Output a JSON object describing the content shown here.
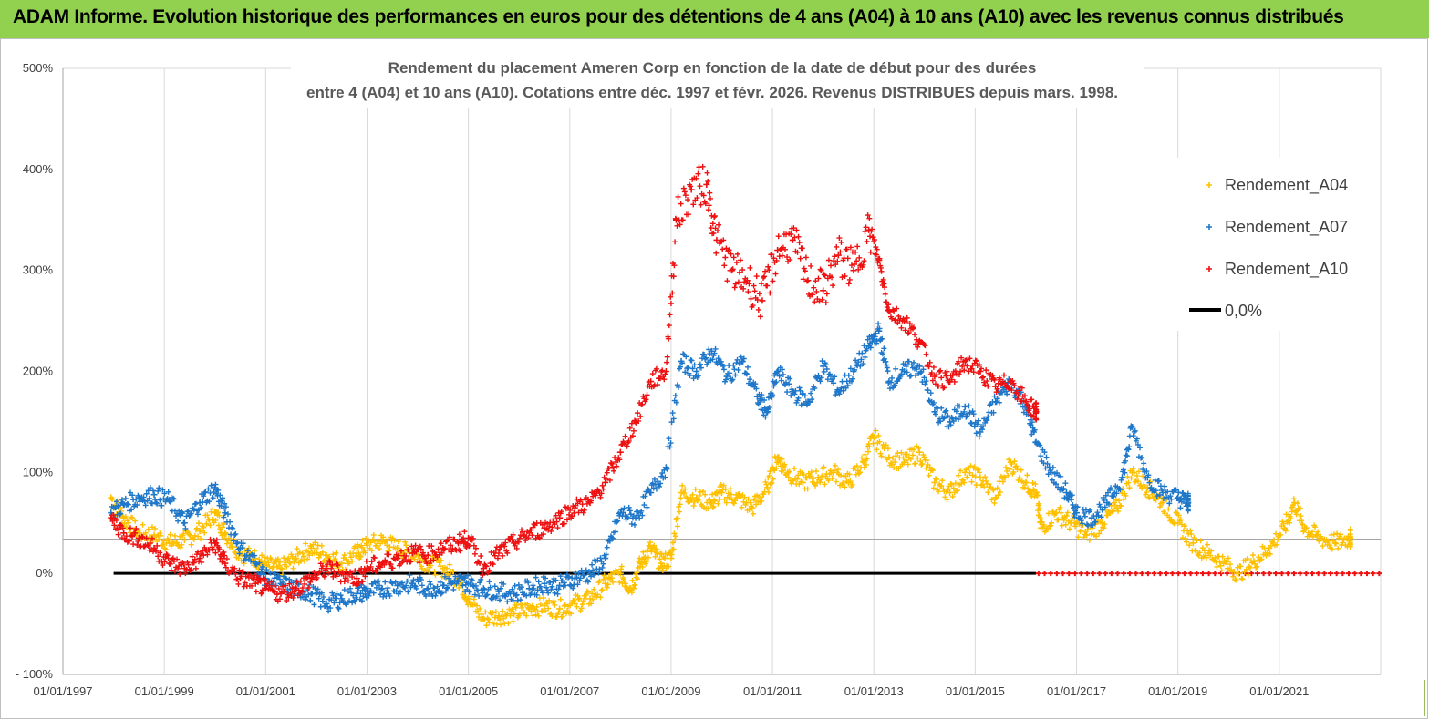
{
  "banner": {
    "title": "ADAM Informe. Evolution historique des performances en euros pour des détentions de 4 ans (A04) à 10 ans (A10) avec les revenus connus distribués",
    "color": "#92d050"
  },
  "chart_data": {
    "type": "scatter",
    "title_line1": "Rendement du placement Ameren Corp en fonction de la date de début pour des durées",
    "title_line2": "entre 4 (A04) et 10 ans (A10). Cotations entre déc. 1997 et févr. 2026. Revenus DISTRIBUES depuis mars. 1998.",
    "x_range": [
      1997.0,
      2023.0
    ],
    "y_range": [
      -100,
      500
    ],
    "x_ticks": [
      1997,
      1999,
      2001,
      2003,
      2005,
      2007,
      2009,
      2011,
      2013,
      2015,
      2017,
      2019,
      2021
    ],
    "x_tick_labels": [
      "01/01/1997",
      "01/01/1999",
      "01/01/2001",
      "01/01/2003",
      "01/01/2005",
      "01/01/2007",
      "01/01/2009",
      "01/01/2011",
      "01/01/2013",
      "01/01/2015",
      "01/01/2017",
      "01/01/2019",
      "01/01/2021"
    ],
    "y_ticks": [
      -100,
      0,
      100,
      200,
      300,
      400,
      500
    ],
    "y_tick_labels": [
      "- 100%",
      "0%",
      "100%",
      "200%",
      "300%",
      "400%",
      "500%"
    ],
    "reference_line_y": 34,
    "zero_line": {
      "name": "0,0%",
      "x_start": 1998.0,
      "x_end": 2023.0,
      "value": 0,
      "color": "#000000"
    },
    "legend_position": "right",
    "series": [
      {
        "name": "Rendement_A04",
        "color": "#ffc000",
        "points": [
          [
            1997.95,
            75
          ],
          [
            1998.2,
            55
          ],
          [
            1998.5,
            40
          ],
          [
            1998.8,
            38
          ],
          [
            1999.1,
            30
          ],
          [
            1999.4,
            33
          ],
          [
            1999.7,
            42
          ],
          [
            2000.0,
            60
          ],
          [
            2000.2,
            40
          ],
          [
            2000.5,
            20
          ],
          [
            2000.8,
            15
          ],
          [
            2001.0,
            8
          ],
          [
            2001.3,
            5
          ],
          [
            2001.6,
            15
          ],
          [
            2001.9,
            25
          ],
          [
            2002.2,
            18
          ],
          [
            2002.5,
            10
          ],
          [
            2002.8,
            20
          ],
          [
            2003.0,
            28
          ],
          [
            2003.3,
            32
          ],
          [
            2003.6,
            25
          ],
          [
            2003.9,
            20
          ],
          [
            2004.2,
            10
          ],
          [
            2004.5,
            5
          ],
          [
            2004.8,
            -5
          ],
          [
            2005.0,
            -25
          ],
          [
            2005.3,
            -45
          ],
          [
            2005.6,
            -42
          ],
          [
            2005.9,
            -40
          ],
          [
            2006.2,
            -35
          ],
          [
            2006.5,
            -32
          ],
          [
            2006.8,
            -35
          ],
          [
            2007.1,
            -30
          ],
          [
            2007.4,
            -25
          ],
          [
            2007.7,
            -10
          ],
          [
            2008.0,
            0
          ],
          [
            2008.2,
            -15
          ],
          [
            2008.4,
            10
          ],
          [
            2008.6,
            25
          ],
          [
            2008.8,
            10
          ],
          [
            2009.0,
            15
          ],
          [
            2009.2,
            80
          ],
          [
            2009.5,
            75
          ],
          [
            2009.8,
            70
          ],
          [
            2010.0,
            80
          ],
          [
            2010.3,
            75
          ],
          [
            2010.6,
            65
          ],
          [
            2010.9,
            85
          ],
          [
            2011.1,
            115
          ],
          [
            2011.3,
            100
          ],
          [
            2011.6,
            90
          ],
          [
            2011.9,
            95
          ],
          [
            2012.2,
            100
          ],
          [
            2012.5,
            90
          ],
          [
            2012.8,
            110
          ],
          [
            2013.0,
            135
          ],
          [
            2013.3,
            115
          ],
          [
            2013.6,
            110
          ],
          [
            2013.9,
            120
          ],
          [
            2014.2,
            90
          ],
          [
            2014.5,
            80
          ],
          [
            2014.8,
            100
          ],
          [
            2015.1,
            95
          ],
          [
            2015.4,
            75
          ],
          [
            2015.7,
            110
          ],
          [
            2016.0,
            90
          ],
          [
            2016.2,
            80
          ],
          [
            2016.3,
            45
          ],
          [
            2016.6,
            60
          ],
          [
            2016.9,
            50
          ],
          [
            2017.2,
            38
          ],
          [
            2017.5,
            50
          ],
          [
            2017.8,
            65
          ],
          [
            2018.1,
            100
          ],
          [
            2018.4,
            85
          ],
          [
            2018.7,
            70
          ],
          [
            2019.0,
            50
          ],
          [
            2019.3,
            30
          ],
          [
            2019.6,
            20
          ],
          [
            2019.9,
            10
          ],
          [
            2020.2,
            0
          ],
          [
            2020.5,
            12
          ],
          [
            2020.8,
            25
          ],
          [
            2021.1,
            45
          ],
          [
            2021.3,
            70
          ],
          [
            2021.5,
            45
          ],
          [
            2021.8,
            35
          ],
          [
            2022.1,
            30
          ],
          [
            2022.4,
            35
          ]
        ]
      },
      {
        "name": "Rendement_A07",
        "color": "#1f77c9",
        "points": [
          [
            1997.95,
            60
          ],
          [
            1998.2,
            68
          ],
          [
            1998.5,
            75
          ],
          [
            1998.8,
            78
          ],
          [
            1999.1,
            72
          ],
          [
            1999.4,
            50
          ],
          [
            1999.7,
            70
          ],
          [
            2000.0,
            85
          ],
          [
            2000.2,
            60
          ],
          [
            2000.5,
            25
          ],
          [
            2000.8,
            10
          ],
          [
            2001.0,
            -5
          ],
          [
            2001.3,
            -10
          ],
          [
            2001.6,
            -15
          ],
          [
            2001.9,
            -20
          ],
          [
            2002.2,
            -30
          ],
          [
            2002.5,
            -25
          ],
          [
            2002.8,
            -20
          ],
          [
            2003.0,
            -18
          ],
          [
            2003.3,
            -15
          ],
          [
            2003.6,
            -12
          ],
          [
            2003.9,
            -10
          ],
          [
            2004.2,
            -15
          ],
          [
            2004.5,
            -12
          ],
          [
            2004.8,
            -8
          ],
          [
            2005.0,
            -10
          ],
          [
            2005.3,
            -15
          ],
          [
            2005.6,
            -18
          ],
          [
            2005.9,
            -20
          ],
          [
            2006.2,
            -15
          ],
          [
            2006.5,
            -10
          ],
          [
            2006.8,
            -12
          ],
          [
            2007.1,
            -5
          ],
          [
            2007.4,
            0
          ],
          [
            2007.7,
            15
          ],
          [
            2008.0,
            60
          ],
          [
            2008.3,
            55
          ],
          [
            2008.6,
            80
          ],
          [
            2008.9,
            105
          ],
          [
            2009.2,
            210
          ],
          [
            2009.5,
            200
          ],
          [
            2009.8,
            220
          ],
          [
            2010.1,
            195
          ],
          [
            2010.4,
            210
          ],
          [
            2010.7,
            175
          ],
          [
            2010.9,
            160
          ],
          [
            2011.1,
            200
          ],
          [
            2011.4,
            180
          ],
          [
            2011.7,
            170
          ],
          [
            2012.0,
            205
          ],
          [
            2012.3,
            180
          ],
          [
            2012.6,
            200
          ],
          [
            2012.9,
            225
          ],
          [
            2013.1,
            240
          ],
          [
            2013.3,
            190
          ],
          [
            2013.6,
            200
          ],
          [
            2013.9,
            205
          ],
          [
            2014.2,
            160
          ],
          [
            2014.5,
            150
          ],
          [
            2014.8,
            165
          ],
          [
            2015.1,
            140
          ],
          [
            2015.4,
            170
          ],
          [
            2015.7,
            190
          ],
          [
            2016.0,
            165
          ],
          [
            2016.2,
            130
          ],
          [
            2016.5,
            100
          ],
          [
            2016.8,
            80
          ],
          [
            2017.0,
            60
          ],
          [
            2017.3,
            55
          ],
          [
            2017.6,
            70
          ],
          [
            2017.9,
            95
          ],
          [
            2018.1,
            145
          ],
          [
            2018.4,
            95
          ],
          [
            2018.7,
            80
          ],
          [
            2019.0,
            75
          ],
          [
            2019.2,
            70
          ]
        ]
      },
      {
        "name": "Rendement_A10",
        "color": "#ee1111",
        "points": [
          [
            1997.95,
            55
          ],
          [
            1998.2,
            40
          ],
          [
            1998.5,
            35
          ],
          [
            1998.8,
            25
          ],
          [
            1999.1,
            10
          ],
          [
            1999.4,
            5
          ],
          [
            1999.7,
            15
          ],
          [
            2000.0,
            30
          ],
          [
            2000.2,
            10
          ],
          [
            2000.5,
            -5
          ],
          [
            2000.8,
            -10
          ],
          [
            2001.0,
            -15
          ],
          [
            2001.3,
            -20
          ],
          [
            2001.6,
            -15
          ],
          [
            2001.9,
            -5
          ],
          [
            2002.2,
            5
          ],
          [
            2002.5,
            0
          ],
          [
            2002.8,
            -5
          ],
          [
            2003.0,
            5
          ],
          [
            2003.3,
            10
          ],
          [
            2003.6,
            15
          ],
          [
            2003.9,
            20
          ],
          [
            2004.2,
            18
          ],
          [
            2004.5,
            25
          ],
          [
            2004.8,
            30
          ],
          [
            2005.0,
            35
          ],
          [
            2005.3,
            5
          ],
          [
            2005.6,
            20
          ],
          [
            2005.9,
            30
          ],
          [
            2006.2,
            40
          ],
          [
            2006.5,
            45
          ],
          [
            2006.8,
            55
          ],
          [
            2007.1,
            65
          ],
          [
            2007.4,
            70
          ],
          [
            2007.7,
            90
          ],
          [
            2008.0,
            120
          ],
          [
            2008.3,
            150
          ],
          [
            2008.6,
            190
          ],
          [
            2008.9,
            200
          ],
          [
            2009.1,
            350
          ],
          [
            2009.4,
            380
          ],
          [
            2009.7,
            385
          ],
          [
            2009.9,
            330
          ],
          [
            2010.2,
            300
          ],
          [
            2010.5,
            290
          ],
          [
            2010.8,
            270
          ],
          [
            2011.1,
            320
          ],
          [
            2011.4,
            330
          ],
          [
            2011.7,
            290
          ],
          [
            2012.0,
            280
          ],
          [
            2012.3,
            315
          ],
          [
            2012.6,
            300
          ],
          [
            2012.9,
            340
          ],
          [
            2013.1,
            310
          ],
          [
            2013.3,
            260
          ],
          [
            2013.6,
            250
          ],
          [
            2013.9,
            230
          ],
          [
            2014.2,
            195
          ],
          [
            2014.5,
            190
          ],
          [
            2014.8,
            210
          ],
          [
            2015.1,
            200
          ],
          [
            2015.4,
            185
          ],
          [
            2015.7,
            190
          ],
          [
            2016.0,
            170
          ],
          [
            2016.2,
            160
          ]
        ]
      }
    ]
  }
}
